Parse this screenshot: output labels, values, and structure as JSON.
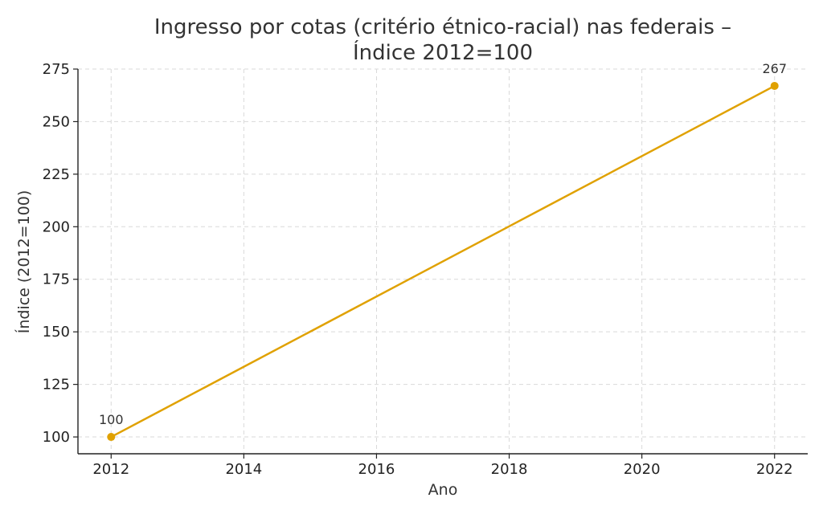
{
  "chart_data": {
    "type": "line",
    "title": "Ingresso por cotas (critério étnico-racial) nas federais –",
    "subtitle": "Índice 2012=100",
    "xlabel": "Ano",
    "ylabel": "Índice (2012=100)",
    "xlim": [
      2011.5,
      2022.5
    ],
    "ylim": [
      92,
      275
    ],
    "x_ticks": [
      2012,
      2014,
      2016,
      2018,
      2020,
      2022
    ],
    "y_ticks": [
      100,
      125,
      150,
      175,
      200,
      225,
      250,
      275
    ],
    "grid": true,
    "series": [
      {
        "color": "#E0A100",
        "x": [
          2012,
          2022
        ],
        "values": [
          100,
          267
        ],
        "data_labels": [
          "100",
          "267"
        ]
      }
    ]
  }
}
